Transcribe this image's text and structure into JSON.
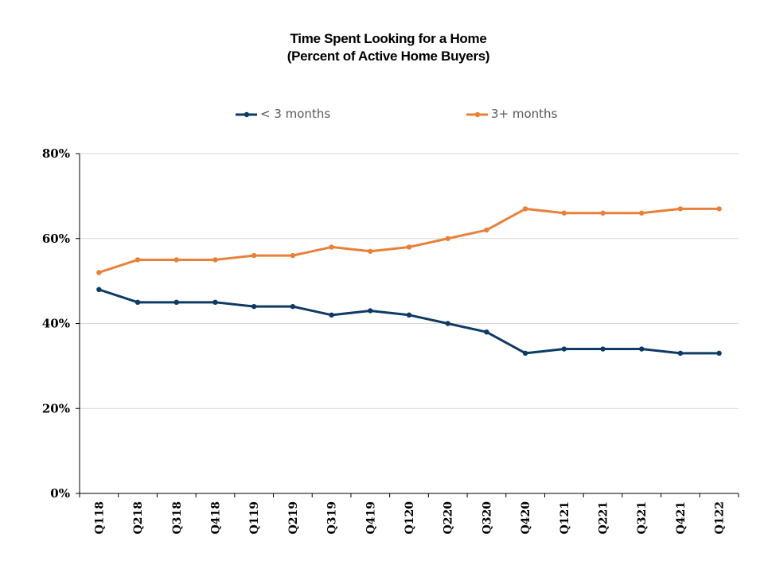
{
  "chart_data": {
    "type": "line",
    "title": "Time Spent Looking for a Home",
    "subtitle": "(Percent of Active Home Buyers)",
    "categories": [
      "Q118",
      "Q218",
      "Q318",
      "Q418",
      "Q119",
      "Q219",
      "Q319",
      "Q419",
      "Q120",
      "Q220",
      "Q320",
      "Q420",
      "Q121",
      "Q221",
      "Q321",
      "Q421",
      "Q122"
    ],
    "series": [
      {
        "name": "< 3 months",
        "color": "#0e3a64",
        "values": [
          48,
          45,
          45,
          45,
          44,
          44,
          42,
          43,
          42,
          40,
          38,
          33,
          34,
          34,
          34,
          33,
          33
        ]
      },
      {
        "name": "3+ months",
        "color": "#e8803a",
        "values": [
          52,
          55,
          55,
          55,
          56,
          56,
          58,
          57,
          58,
          60,
          62,
          67,
          66,
          66,
          66,
          67,
          67
        ]
      }
    ],
    "y_ticks": [
      "0%",
      "20%",
      "40%",
      "60%",
      "80%"
    ],
    "ylim": [
      0,
      80
    ],
    "grid": true,
    "legend_position": "top"
  }
}
